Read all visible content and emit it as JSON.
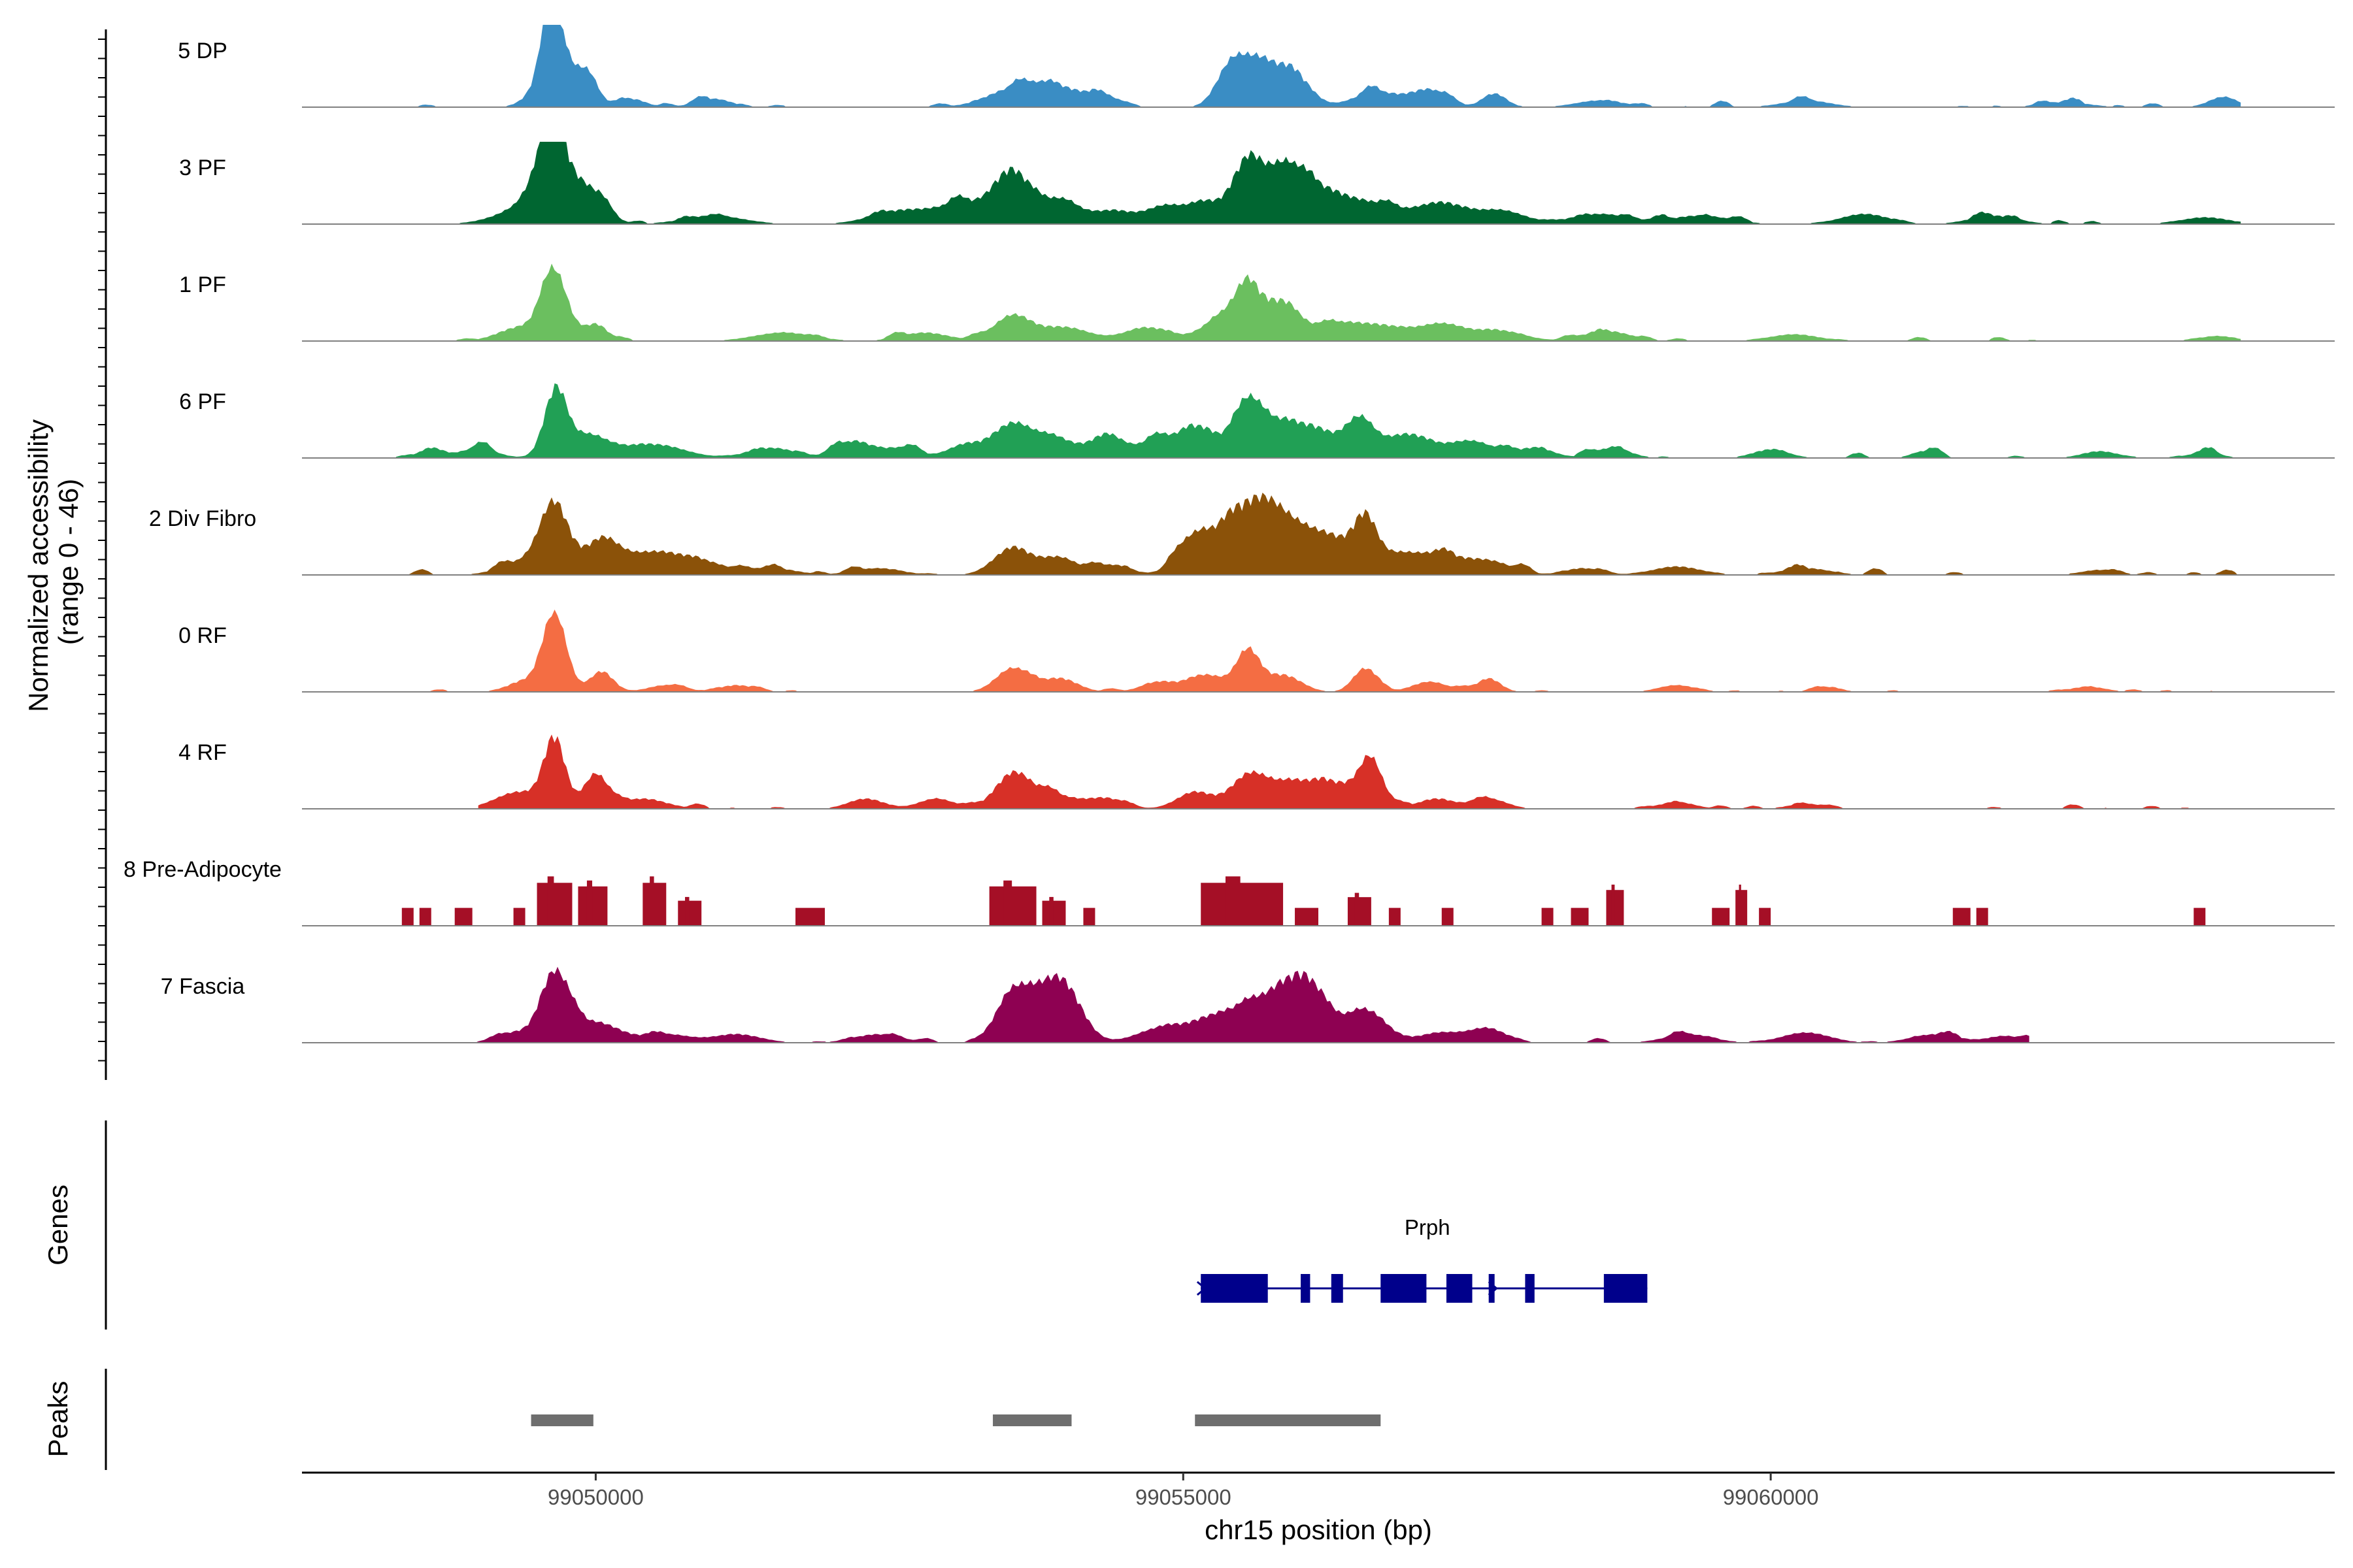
{
  "chart_data": {
    "type": "area",
    "title": "",
    "ylabel": "Normalized accessibility\n(range 0 - 46)",
    "y_range": [
      0,
      46
    ],
    "xlabel": "chr15 position (bp)",
    "xlim": [
      99047500,
      99064800
    ],
    "x_ticks": [
      99050000,
      99055000,
      99060000
    ],
    "x_tick_labels": [
      "99050000",
      "99055000",
      "99060000"
    ],
    "tracks": [
      {
        "name": "5 DP",
        "color": "#3A8DC4",
        "start": 99048300,
        "end": 99064000,
        "segments": [
          [
            99048300,
            99064000
          ]
        ],
        "noise": 4,
        "peaks": [
          [
            99049620,
            46,
            70
          ],
          [
            99049680,
            32,
            160
          ],
          [
            99049950,
            12,
            80
          ],
          [
            99050300,
            5,
            120
          ],
          [
            99051000,
            5,
            150
          ],
          [
            99053550,
            10,
            230
          ],
          [
            99053900,
            11,
            200
          ],
          [
            99054300,
            7,
            150
          ],
          [
            99055400,
            22,
            120
          ],
          [
            99055650,
            26,
            150
          ],
          [
            99055950,
            18,
            140
          ],
          [
            99056650,
            9,
            200
          ],
          [
            99057100,
            10,
            150
          ],
          [
            99057650,
            8,
            100
          ],
          [
            99058550,
            4,
            200
          ],
          [
            99060300,
            4,
            200
          ],
          [
            99062500,
            3,
            200
          ],
          [
            99063850,
            6,
            120
          ]
        ]
      },
      {
        "name": "3 PF",
        "color": "#006631",
        "start": 99048300,
        "end": 99064000,
        "segments": [
          [
            99048300,
            99064000
          ]
        ],
        "noise": 4,
        "peaks": [
          [
            99049620,
            44,
            90
          ],
          [
            99049700,
            28,
            200
          ],
          [
            99049400,
            8,
            250
          ],
          [
            99050000,
            10,
            120
          ],
          [
            99051000,
            5,
            250
          ],
          [
            99052600,
            8,
            250
          ],
          [
            99053150,
            12,
            220
          ],
          [
            99053550,
            30,
            150
          ],
          [
            99053950,
            14,
            150
          ],
          [
            99054400,
            8,
            200
          ],
          [
            99054850,
            10,
            150
          ],
          [
            99055200,
            13,
            150
          ],
          [
            99055550,
            36,
            120
          ],
          [
            99055850,
            30,
            150
          ],
          [
            99056150,
            18,
            200
          ],
          [
            99056600,
            12,
            250
          ],
          [
            99057200,
            12,
            200
          ],
          [
            99057700,
            8,
            200
          ],
          [
            99058550,
            6,
            250
          ],
          [
            99059400,
            5,
            250
          ],
          [
            99060800,
            6,
            200
          ],
          [
            99061900,
            5,
            200
          ],
          [
            99063700,
            4,
            200
          ]
        ]
      },
      {
        "name": "1 PF",
        "color": "#6BBF5F",
        "start": 99048300,
        "end": 99064000,
        "segments": [
          [
            99048300,
            99064000
          ]
        ],
        "noise": 3,
        "peaks": [
          [
            99049650,
            40,
            110
          ],
          [
            99049350,
            8,
            180
          ],
          [
            99050000,
            10,
            100
          ],
          [
            99051600,
            5,
            250
          ],
          [
            99052800,
            5,
            200
          ],
          [
            99053550,
            15,
            160
          ],
          [
            99054000,
            8,
            200
          ],
          [
            99054700,
            8,
            200
          ],
          [
            99055300,
            12,
            150
          ],
          [
            99055550,
            30,
            120
          ],
          [
            99055850,
            22,
            140
          ],
          [
            99056300,
            10,
            200
          ],
          [
            99056700,
            8,
            200
          ],
          [
            99057200,
            10,
            200
          ],
          [
            99057700,
            6,
            200
          ],
          [
            99058600,
            6,
            200
          ],
          [
            99060200,
            4,
            200
          ],
          [
            99063800,
            3,
            150
          ]
        ]
      },
      {
        "name": "6 PF",
        "color": "#21A055",
        "start": 99048300,
        "end": 99064000,
        "segments": [
          [
            99048300,
            99064000
          ]
        ],
        "noise": 4,
        "peaks": [
          [
            99049650,
            34,
            90
          ],
          [
            99049900,
            14,
            200
          ],
          [
            99048600,
            6,
            100
          ],
          [
            99049000,
            6,
            150
          ],
          [
            99050500,
            8,
            250
          ],
          [
            99051500,
            6,
            200
          ],
          [
            99052200,
            10,
            150
          ],
          [
            99052600,
            6,
            150
          ],
          [
            99053150,
            8,
            150
          ],
          [
            99053550,
            20,
            160
          ],
          [
            99053900,
            12,
            150
          ],
          [
            99054350,
            14,
            150
          ],
          [
            99054800,
            12,
            150
          ],
          [
            99055150,
            18,
            150
          ],
          [
            99055550,
            34,
            120
          ],
          [
            99055850,
            20,
            140
          ],
          [
            99056150,
            16,
            150
          ],
          [
            99056500,
            22,
            120
          ],
          [
            99056900,
            14,
            200
          ],
          [
            99057450,
            10,
            200
          ],
          [
            99058000,
            6,
            150
          ],
          [
            99058650,
            6,
            150
          ],
          [
            99060000,
            5,
            150
          ],
          [
            99061300,
            4,
            100
          ],
          [
            99062800,
            4,
            150
          ],
          [
            99063700,
            4,
            120
          ]
        ]
      },
      {
        "name": "2 Div Fibro",
        "color": "#8B5209",
        "start": 99048300,
        "end": 99064000,
        "segments": [
          [
            99048300,
            99064000
          ]
        ],
        "noise": 4,
        "peaks": [
          [
            99049650,
            40,
            120
          ],
          [
            99049400,
            8,
            200
          ],
          [
            99050050,
            20,
            140
          ],
          [
            99050400,
            10,
            200
          ],
          [
            99050800,
            10,
            250
          ],
          [
            99051500,
            4,
            200
          ],
          [
            99052400,
            4,
            200
          ],
          [
            99053550,
            16,
            160
          ],
          [
            99053950,
            10,
            150
          ],
          [
            99054400,
            6,
            150
          ],
          [
            99055100,
            24,
            150
          ],
          [
            99055400,
            26,
            120
          ],
          [
            99055650,
            34,
            150
          ],
          [
            99055950,
            28,
            200
          ],
          [
            99056300,
            16,
            150
          ],
          [
            99056550,
            30,
            100
          ],
          [
            99056800,
            10,
            150
          ],
          [
            99057150,
            12,
            200
          ],
          [
            99057600,
            8,
            200
          ],
          [
            99058400,
            4,
            150
          ],
          [
            99059200,
            5,
            200
          ],
          [
            99060300,
            4,
            200
          ],
          [
            99062800,
            3,
            150
          ]
        ]
      },
      {
        "name": "0 RF",
        "color": "#F46D43",
        "start": 99048300,
        "end": 99064000,
        "segments": [
          [
            99048300,
            99064000
          ]
        ],
        "noise": 2,
        "peaks": [
          [
            99049650,
            46,
            100
          ],
          [
            99049400,
            6,
            150
          ],
          [
            99050050,
            12,
            100
          ],
          [
            99050600,
            4,
            150
          ],
          [
            99051200,
            4,
            150
          ],
          [
            99053550,
            14,
            140
          ],
          [
            99053950,
            8,
            150
          ],
          [
            99054800,
            6,
            150
          ],
          [
            99055200,
            10,
            150
          ],
          [
            99055550,
            24,
            100
          ],
          [
            99055850,
            10,
            150
          ],
          [
            99056550,
            14,
            100
          ],
          [
            99057100,
            6,
            150
          ],
          [
            99057600,
            8,
            100
          ],
          [
            99059200,
            4,
            150
          ],
          [
            99060500,
            3,
            100
          ],
          [
            99062700,
            3,
            150
          ]
        ]
      },
      {
        "name": "4 RF",
        "color": "#D73027",
        "start": 99049000,
        "end": 99064000,
        "segments": [
          [
            99049000,
            99064000
          ]
        ],
        "noise": 3,
        "peaks": [
          [
            99049650,
            40,
            90
          ],
          [
            99049350,
            10,
            200
          ],
          [
            99050000,
            20,
            100
          ],
          [
            99050400,
            6,
            200
          ],
          [
            99052300,
            6,
            150
          ],
          [
            99052900,
            6,
            150
          ],
          [
            99053550,
            20,
            150
          ],
          [
            99053900,
            8,
            200
          ],
          [
            99054350,
            6,
            150
          ],
          [
            99055100,
            10,
            150
          ],
          [
            99055550,
            18,
            150
          ],
          [
            99055900,
            14,
            200
          ],
          [
            99056300,
            14,
            200
          ],
          [
            99056600,
            26,
            100
          ],
          [
            99057150,
            6,
            150
          ],
          [
            99057600,
            6,
            150
          ],
          [
            99059200,
            4,
            150
          ],
          [
            99060300,
            3,
            150
          ]
        ]
      },
      {
        "name": "8 Pre-Adipocyte",
        "color": "#A50F26",
        "start": 99048300,
        "end": 99064000,
        "noise": 0,
        "peaks": [],
        "segments": [
          [
            99048350,
            99048450,
            10
          ],
          [
            99048500,
            99048600,
            10
          ],
          [
            99048800,
            99048950,
            10
          ],
          [
            99049300,
            99049400,
            10
          ],
          [
            99049500,
            99049800,
            24
          ],
          [
            99049850,
            99050100,
            22
          ],
          [
            99050400,
            99050600,
            24
          ],
          [
            99050700,
            99050900,
            14
          ],
          [
            99051700,
            99051950,
            10
          ],
          [
            99053350,
            99053750,
            22
          ],
          [
            99053800,
            99054000,
            14
          ],
          [
            99054150,
            99054250,
            10
          ],
          [
            99055150,
            99055850,
            24
          ],
          [
            99055950,
            99056150,
            10
          ],
          [
            99056400,
            99056600,
            16
          ],
          [
            99056750,
            99056850,
            10
          ],
          [
            99057200,
            99057300,
            10
          ],
          [
            99058050,
            99058150,
            10
          ],
          [
            99058300,
            99058450,
            10
          ],
          [
            99058600,
            99058750,
            20
          ],
          [
            99059500,
            99059650,
            10
          ],
          [
            99059700,
            99059800,
            20
          ],
          [
            99059900,
            99060000,
            10
          ],
          [
            99061550,
            99061700,
            10
          ],
          [
            99061750,
            99061850,
            10
          ],
          [
            99063600,
            99063700,
            10
          ]
        ]
      },
      {
        "name": "7 Fascia",
        "color": "#8E0152",
        "start": 99048300,
        "end": 99064000,
        "segments": [
          [
            99048300,
            99062200
          ]
        ],
        "noise": 3,
        "peaks": [
          [
            99049650,
            40,
            120
          ],
          [
            99049300,
            6,
            150
          ],
          [
            99050000,
            12,
            200
          ],
          [
            99050600,
            5,
            200
          ],
          [
            99051200,
            5,
            200
          ],
          [
            99052400,
            5,
            200
          ],
          [
            99053550,
            24,
            150
          ],
          [
            99053850,
            24,
            200
          ],
          [
            99054000,
            18,
            150
          ],
          [
            99054800,
            8,
            200
          ],
          [
            99055200,
            10,
            200
          ],
          [
            99055500,
            14,
            200
          ],
          [
            99055800,
            22,
            180
          ],
          [
            99056050,
            28,
            150
          ],
          [
            99056350,
            10,
            200
          ],
          [
            99056600,
            14,
            150
          ],
          [
            99057200,
            6,
            200
          ],
          [
            99057600,
            8,
            150
          ],
          [
            99059300,
            5,
            200
          ],
          [
            99060300,
            6,
            200
          ],
          [
            99061400,
            5,
            200
          ],
          [
            99062000,
            4,
            150
          ]
        ]
      }
    ],
    "genes": [
      {
        "name": "Prph",
        "strand": "+",
        "start": 99055150,
        "end": 99058950,
        "color": "#00008B",
        "exons": [
          [
            99055150,
            99055720
          ],
          [
            99056000,
            99056080
          ],
          [
            99056260,
            99056360
          ],
          [
            99056680,
            99057070
          ],
          [
            99057240,
            99057460
          ],
          [
            99057600,
            99057650
          ],
          [
            99057910,
            99057990
          ],
          [
            99058580,
            99058950
          ]
        ]
      }
    ],
    "peaks_track": {
      "color": "#6E6E6E",
      "regions": [
        [
          99049450,
          99049980
        ],
        [
          99053380,
          99054050
        ],
        [
          99055100,
          99056680
        ]
      ]
    },
    "panel_titles": {
      "genes": "Genes",
      "peaks": "Peaks"
    }
  }
}
